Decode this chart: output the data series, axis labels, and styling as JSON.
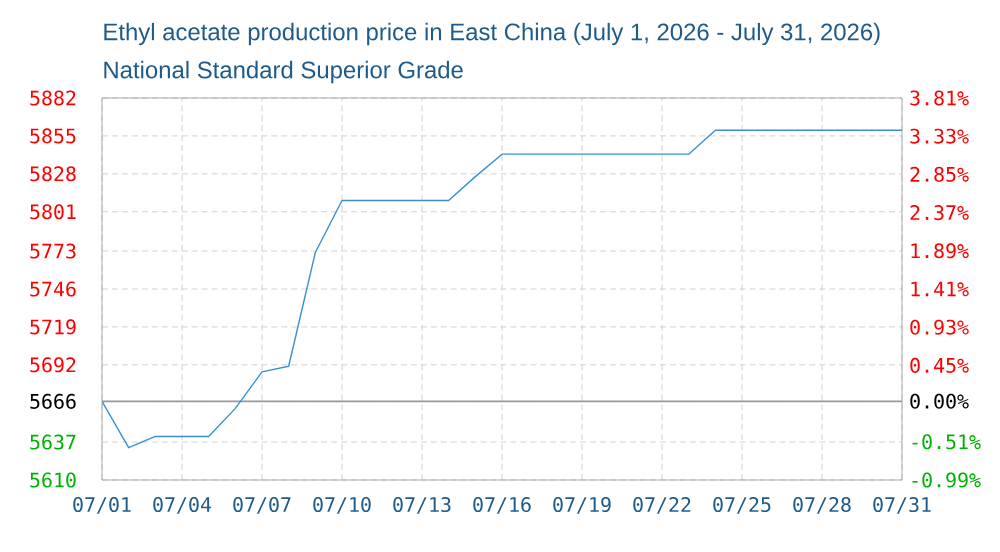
{
  "chart_data": {
    "type": "line",
    "title": "Ethyl acetate production price in East China (July 1, 2026 - July 31, 2026)",
    "subtitle": "National Standard Superior Grade",
    "x": [
      "2026-07-01",
      "2026-07-02",
      "2026-07-03",
      "2026-07-04",
      "2026-07-05",
      "2026-07-06",
      "2026-07-07",
      "2026-07-08",
      "2026-07-09",
      "2026-07-10",
      "2026-07-11",
      "2026-07-12",
      "2026-07-13",
      "2026-07-14",
      "2026-07-15",
      "2026-07-16",
      "2026-07-17",
      "2026-07-18",
      "2026-07-19",
      "2026-07-20",
      "2026-07-21",
      "2026-07-22",
      "2026-07-23",
      "2026-07-24",
      "2026-07-25",
      "2026-07-26",
      "2026-07-27",
      "2026-07-28",
      "2026-07-29",
      "2026-07-30",
      "2026-07-31"
    ],
    "series": [
      {
        "color": "#3a8fd0",
        "values": [
          5666,
          5633,
          5641,
          5641,
          5641,
          5661,
          5687,
          5691,
          5772,
          5809,
          5809,
          5809,
          5809,
          5809,
          5826,
          5842,
          5842,
          5842,
          5842,
          5842,
          5842,
          5842,
          5842,
          5859,
          5859,
          5859,
          5859,
          5859,
          5859,
          5859,
          5859
        ]
      }
    ],
    "xlim": [
      "2026-07-01",
      "2026-07-31"
    ],
    "xticks": [
      {
        "value": "2026-07-01",
        "label": "07/01"
      },
      {
        "value": "2026-07-04",
        "label": "07/04"
      },
      {
        "value": "2026-07-07",
        "label": "07/07"
      },
      {
        "value": "2026-07-10",
        "label": "07/10"
      },
      {
        "value": "2026-07-13",
        "label": "07/13"
      },
      {
        "value": "2026-07-16",
        "label": "07/16"
      },
      {
        "value": "2026-07-19",
        "label": "07/19"
      },
      {
        "value": "2026-07-22",
        "label": "07/22"
      },
      {
        "value": "2026-07-25",
        "label": "07/25"
      },
      {
        "value": "2026-07-28",
        "label": "07/28"
      },
      {
        "value": "2026-07-31",
        "label": "07/31"
      }
    ],
    "ylim": [
      5610,
      5882
    ],
    "yticks": [
      5610,
      5637,
      5666,
      5692,
      5719,
      5746,
      5773,
      5801,
      5828,
      5855,
      5882
    ],
    "y2lim": [
      -0.99,
      3.81
    ],
    "y2ticks": [
      {
        "value": -0.99,
        "label": "-0.99%"
      },
      {
        "value": -0.51,
        "label": "-0.51%"
      },
      {
        "value": 0,
        "label": "0.00%"
      },
      {
        "value": 0.45,
        "label": "0.45%"
      },
      {
        "value": 0.93,
        "label": "0.93%"
      },
      {
        "value": 1.41,
        "label": "1.41%"
      },
      {
        "value": 1.89,
        "label": "1.89%"
      },
      {
        "value": 2.37,
        "label": "2.37%"
      },
      {
        "value": 2.85,
        "label": "2.85%"
      },
      {
        "value": 3.33,
        "label": "3.33%"
      },
      {
        "value": 3.81,
        "label": "3.81%"
      }
    ],
    "ref_lines": [
      {
        "axis": "y",
        "value": 5666,
        "color": "#999999"
      }
    ],
    "grid": true,
    "marker": "none",
    "line_style": "solid"
  }
}
